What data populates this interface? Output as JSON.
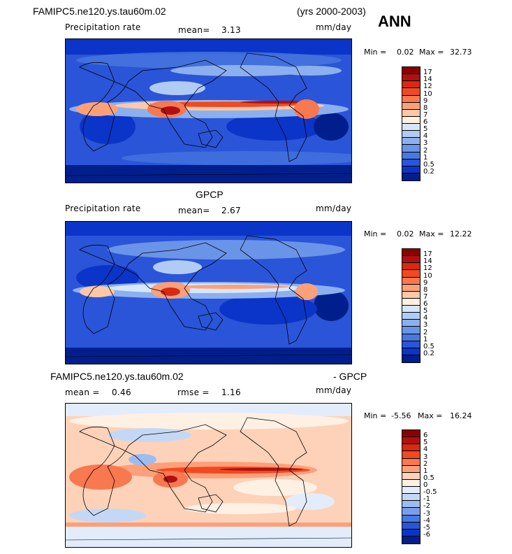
{
  "title": {
    "case": "FAMIPC5.ne120.ys.tau60m.02",
    "years": "(yrs 2000-2003)",
    "season": "ANN"
  },
  "panels": [
    {
      "id": "model",
      "field": "Precipitation rate",
      "mean_label": "mean=",
      "mean_value": "3.13",
      "units": "mm/day",
      "min_label": "Min =",
      "min_value": "0.02",
      "max_label": "Max =",
      "max_value": "32.73",
      "levels": [
        "17",
        "14",
        "12",
        "10",
        "9",
        "8",
        "7",
        "6",
        "5",
        "4",
        "3",
        "2",
        "1",
        "0.5",
        "0.2"
      ],
      "colors": [
        "#8b0000",
        "#b01010",
        "#d82a10",
        "#f04a20",
        "#f87850",
        "#fca07a",
        "#fdc8a8",
        "#fff0e0",
        "#d6e6fb",
        "#b0ccf5",
        "#8cb0ee",
        "#6a94e8",
        "#4878e0",
        "#2a55d8",
        "#0b35c8",
        "#001f8c"
      ]
    },
    {
      "id": "obs",
      "heading": "GPCP",
      "field": "Precipitation rate",
      "mean_label": "mean=",
      "mean_value": "2.67",
      "units": "mm/day",
      "min_label": "Min =",
      "min_value": "0.02",
      "max_label": "Max =",
      "max_value": "12.22",
      "levels": [
        "17",
        "14",
        "12",
        "10",
        "9",
        "8",
        "7",
        "6",
        "5",
        "4",
        "3",
        "2",
        "1",
        "0.5",
        "0.2"
      ],
      "colors": [
        "#8b0000",
        "#b01010",
        "#d82a10",
        "#f04a20",
        "#f87850",
        "#fca07a",
        "#fdc8a8",
        "#fff0e0",
        "#d6e6fb",
        "#b0ccf5",
        "#8cb0ee",
        "#6a94e8",
        "#4878e0",
        "#2a55d8",
        "#0b35c8",
        "#001f8c"
      ]
    },
    {
      "id": "diff",
      "heading_left": "FAMIPC5.ne120.ys.tau60m.02",
      "heading_right": "- GPCP",
      "mean_label": "mean =",
      "mean_value": "0.46",
      "rmse_label": "rmse =",
      "rmse_value": "1.16",
      "units": "mm/day",
      "min_label": "Min =",
      "min_value": "-5.56",
      "max_label": "Max =",
      "max_value": "16.24",
      "levels": [
        "6",
        "5",
        "4",
        "3",
        "2",
        "1",
        "0.5",
        "0",
        "-0.5",
        "-1",
        "-2",
        "-3",
        "-4",
        "-5",
        "-6"
      ],
      "colors": [
        "#8b0000",
        "#b01010",
        "#d82a10",
        "#f04a20",
        "#f87850",
        "#fca07a",
        "#fdd2b8",
        "#fff0e4",
        "#e2ecfb",
        "#c4d8f6",
        "#9dbcf0",
        "#7a9eea",
        "#4878e0",
        "#2a55d8",
        "#0b35c8",
        "#001f8c"
      ]
    }
  ]
}
